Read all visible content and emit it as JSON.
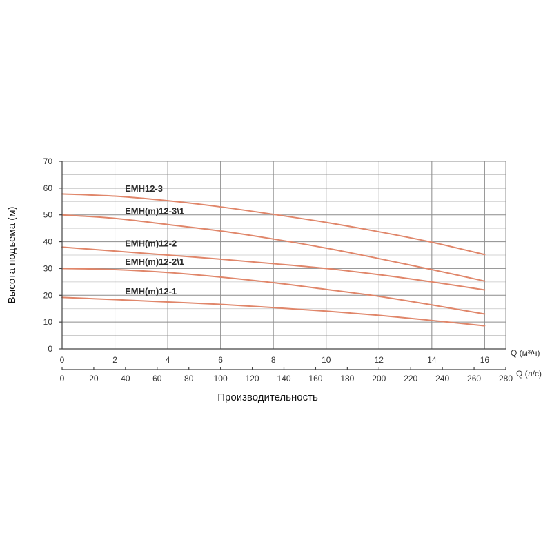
{
  "chart_data": {
    "type": "line",
    "ylabel": "Высота подъема (м)",
    "xlabel": "Производительность",
    "ylim": [
      0,
      70
    ],
    "yticks": [
      "0",
      "10",
      "20",
      "30",
      "40",
      "50",
      "60",
      "70"
    ],
    "x_axes": [
      {
        "name": "Q (м³/ч)",
        "lim": [
          0,
          16.8
        ],
        "ticks": [
          "0",
          "2",
          "4",
          "6",
          "8",
          "10",
          "12",
          "14",
          "16"
        ]
      },
      {
        "name": "Q (л/с)",
        "lim": [
          0,
          280
        ],
        "ticks": [
          "0",
          "20",
          "40",
          "60",
          "80",
          "100",
          "120",
          "140",
          "160",
          "180",
          "200",
          "220",
          "240",
          "260",
          "280"
        ]
      }
    ],
    "grid": true,
    "line_color": "#e0866a",
    "series": [
      {
        "name": "EMH12-3",
        "x": [
          0,
          2,
          4,
          6,
          8,
          10,
          12,
          14,
          16
        ],
        "y": [
          57.8,
          57.0,
          55.3,
          53.0,
          50.2,
          47.2,
          43.7,
          39.8,
          35.2
        ]
      },
      {
        "name": "EMH(m)12-3\\1",
        "x": [
          0,
          2,
          4,
          6,
          8,
          10,
          12,
          14,
          16
        ],
        "y": [
          50.0,
          48.7,
          46.4,
          44.0,
          41.0,
          37.6,
          33.7,
          29.6,
          25.3
        ]
      },
      {
        "name": "EMH(m)12-2",
        "x": [
          0,
          2,
          4,
          6,
          8,
          10,
          12,
          14,
          16
        ],
        "y": [
          38.0,
          36.5,
          35.0,
          33.5,
          31.8,
          30.0,
          27.7,
          25.0,
          22.0
        ]
      },
      {
        "name": "EMH(m)12-2\\1",
        "x": [
          0,
          2,
          4,
          6,
          8,
          10,
          12,
          14,
          16
        ],
        "y": [
          30.0,
          29.6,
          28.5,
          26.8,
          24.7,
          22.2,
          19.6,
          16.4,
          13.0
        ]
      },
      {
        "name": "EMH(m)12-1",
        "x": [
          0,
          2,
          4,
          6,
          8,
          10,
          12,
          14,
          16
        ],
        "y": [
          19.2,
          18.4,
          17.5,
          16.6,
          15.4,
          14.1,
          12.5,
          10.6,
          8.6
        ]
      }
    ]
  }
}
